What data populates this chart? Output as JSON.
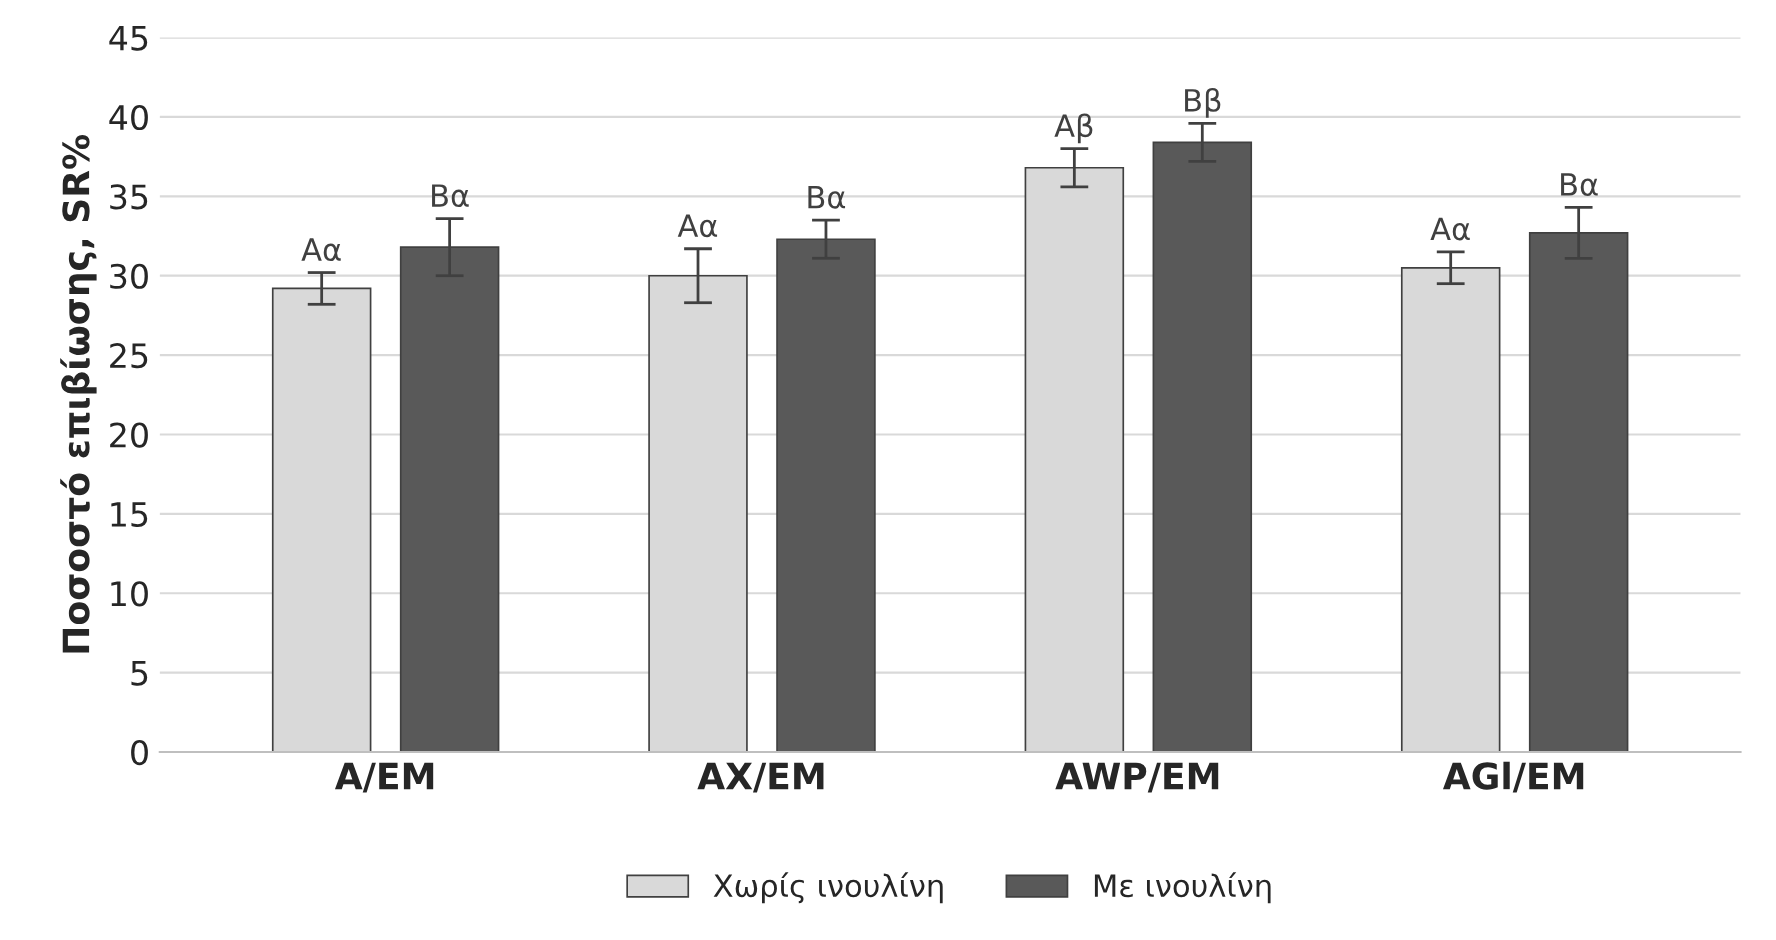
{
  "chart_data": {
    "type": "bar",
    "ylabel": "Ποσοστό επιβίωσης, SR%",
    "categories": [
      "A/EM",
      "AX/EM",
      "AWP/EM",
      "AGl/EM"
    ],
    "series": [
      {
        "name": "Χωρίς ινουλίνη",
        "color": "#d9d9d9",
        "values": [
          29.2,
          30.0,
          36.8,
          30.5
        ],
        "errors": [
          1.0,
          1.7,
          1.2,
          1.0
        ],
        "value_labels": [
          "Αα",
          "Αα",
          "Αβ",
          "Αα"
        ]
      },
      {
        "name": "Με ινουλίνη",
        "color": "#595959",
        "values": [
          31.8,
          32.3,
          38.4,
          32.7
        ],
        "errors": [
          1.8,
          1.2,
          1.2,
          1.6
        ],
        "value_labels": [
          "Βα",
          "Βα",
          "Ββ",
          "Βα"
        ]
      }
    ],
    "ylim": [
      0,
      45
    ],
    "yticks": [
      0,
      5,
      10,
      15,
      20,
      25,
      30,
      35,
      40,
      45
    ],
    "grid": "y",
    "legend": "bottom"
  }
}
